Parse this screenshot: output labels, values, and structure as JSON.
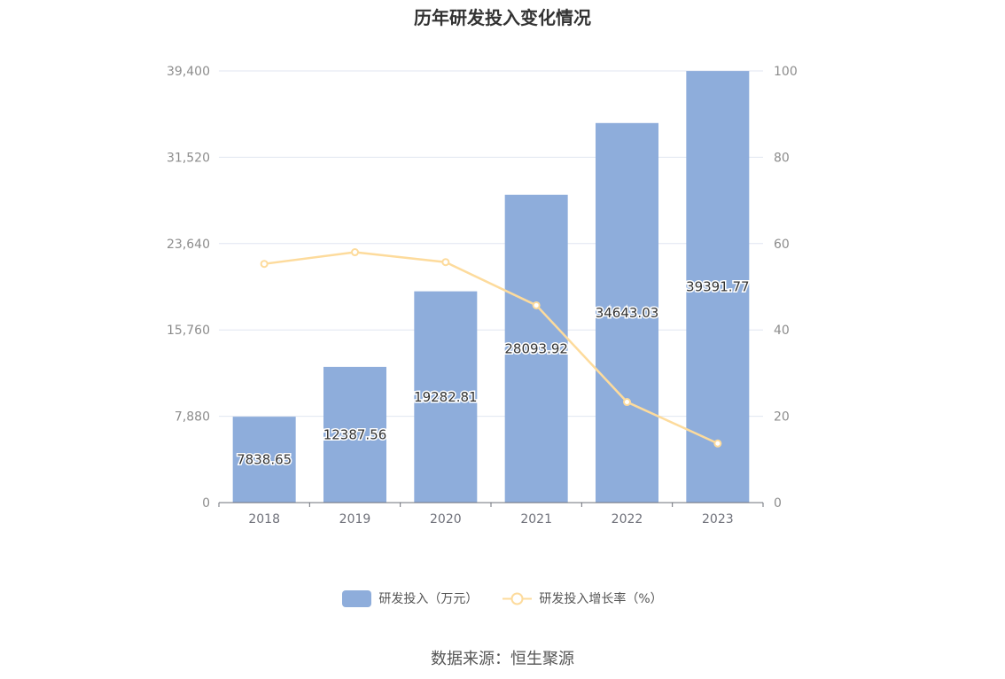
{
  "title": "历年研发投入变化情况",
  "source": "数据来源：恒生聚源",
  "colors": {
    "bar": "#8eaddb",
    "line": "#fddb9c",
    "grid": "#e0e6f1",
    "axis": "#6e7079"
  },
  "chart_data": {
    "type": "bar+line",
    "categories": [
      "2018",
      "2019",
      "2020",
      "2021",
      "2022",
      "2023"
    ],
    "series": [
      {
        "name": "研发投入（万元）",
        "type": "bar",
        "axis": "left",
        "values": [
          7838.65,
          12387.56,
          19282.81,
          28093.92,
          34643.03,
          39391.77
        ],
        "labels": [
          "7838.65",
          "12387.56",
          "19282.81",
          "28093.92",
          "34643.03",
          "39391.77"
        ]
      },
      {
        "name": "研发投入增长率（%）",
        "type": "line",
        "axis": "right",
        "values": [
          55.3,
          58.0,
          55.7,
          45.7,
          23.3,
          13.7
        ]
      }
    ],
    "y_left": {
      "ticks": [
        "0",
        "7,880",
        "15,760",
        "23,640",
        "31,520",
        "39,400"
      ],
      "min": 0,
      "max": 39400
    },
    "y_right": {
      "ticks": [
        "0",
        "20",
        "40",
        "60",
        "80",
        "100"
      ],
      "min": 0,
      "max": 100
    },
    "grid": true,
    "legend_position": "bottom"
  }
}
